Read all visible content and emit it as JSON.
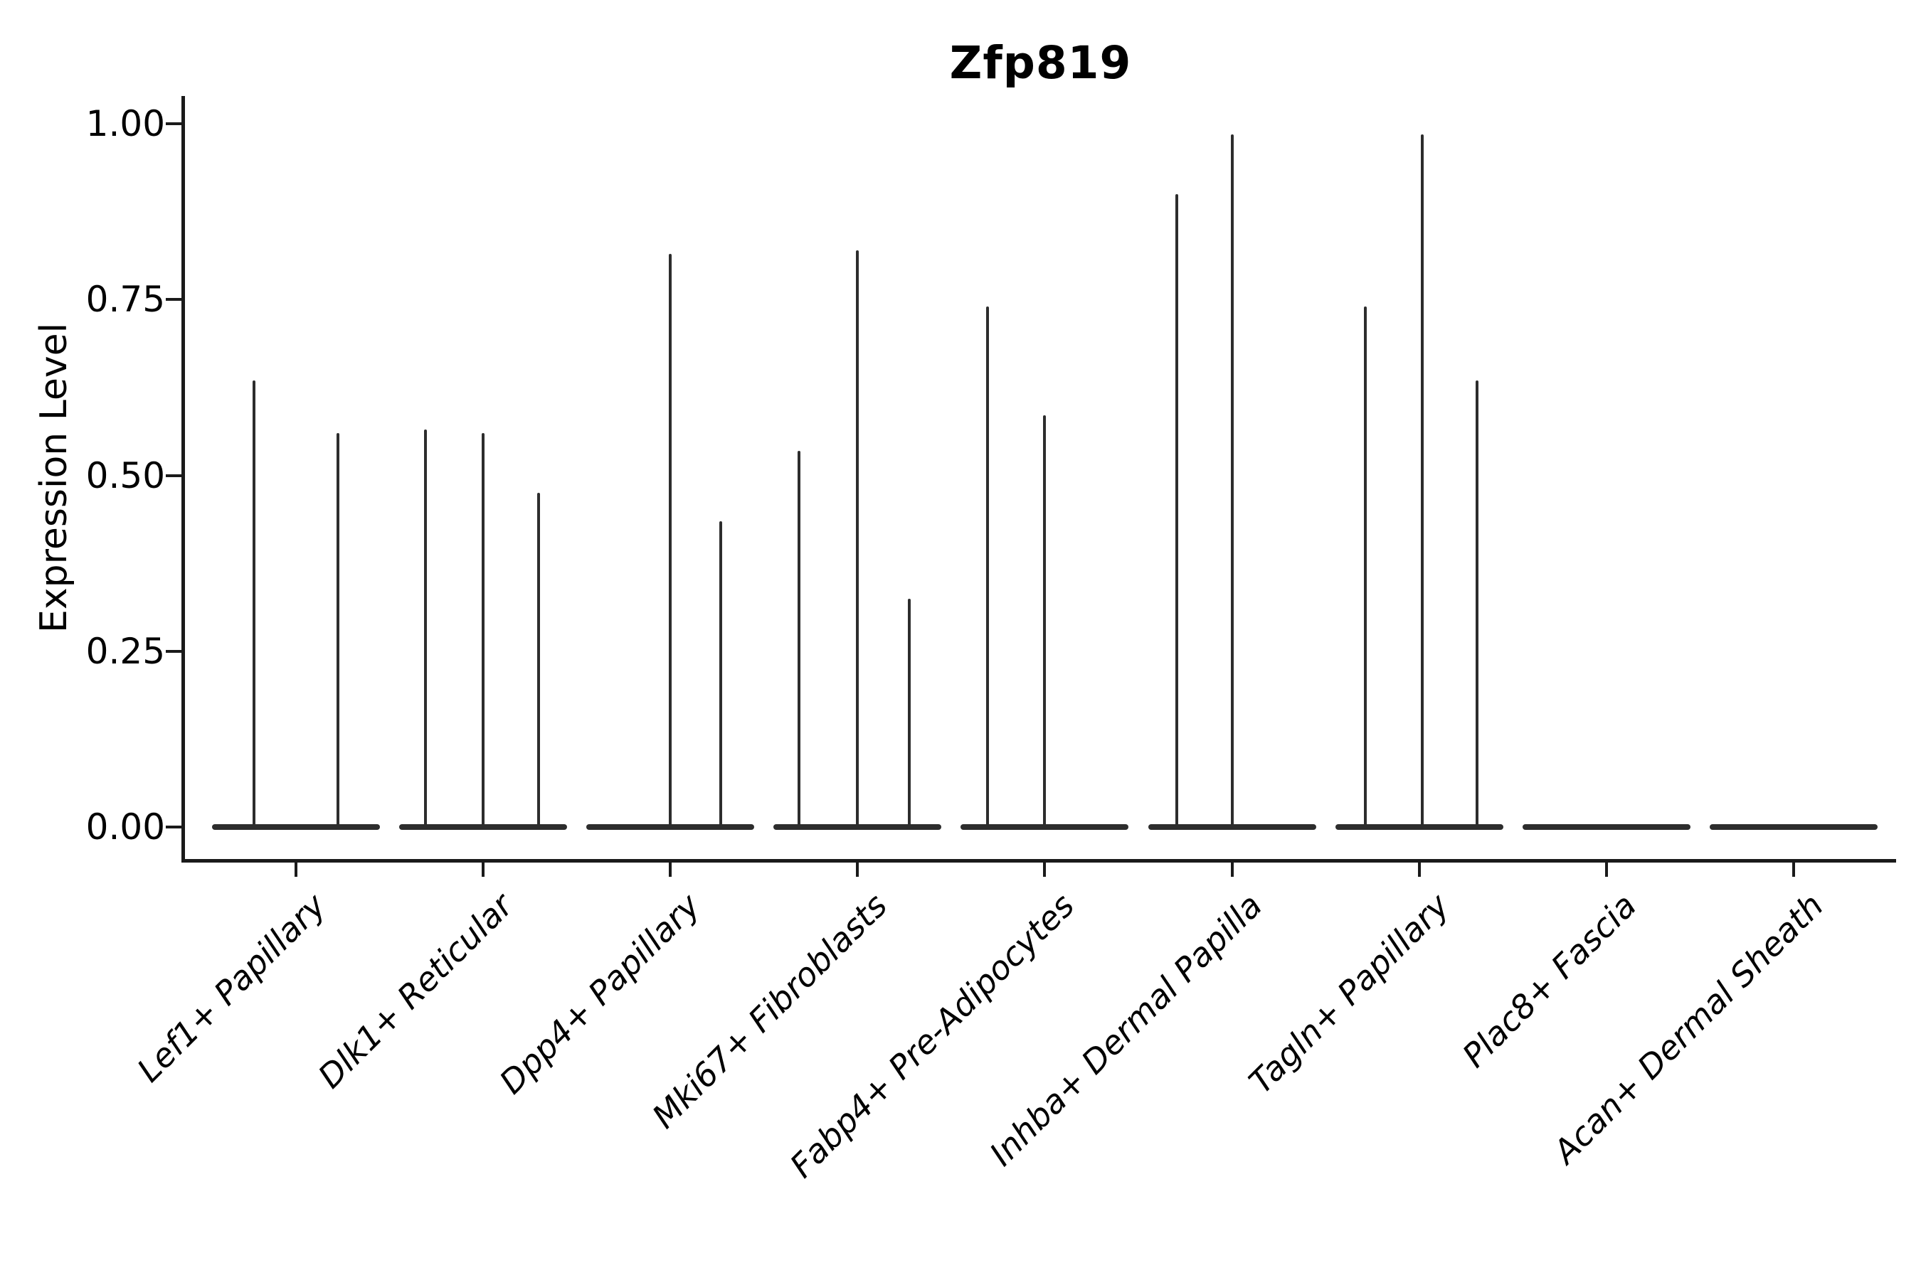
{
  "title": "Zfp819",
  "y_axis": {
    "label": "Expression Level"
  },
  "chart_data": {
    "type": "violin",
    "title": "Zfp819",
    "xlabel": "",
    "ylabel": "Expression Level",
    "ylim": [
      0,
      1.04
    ],
    "grid": false,
    "legend": "none",
    "line_color": "#2d2d2d",
    "axis_color": "#1a1a1a",
    "yticks": [
      1.0,
      0.75,
      0.5,
      0.25,
      0.0
    ],
    "ytick_labels": [
      "1.00",
      "0.75",
      "0.50",
      "0.25",
      "0.00"
    ],
    "categories": [
      "Lef1+ Papillary",
      "Dlk1+ Reticular",
      "Dpp4+ Papillary",
      "Mki67+ Fibroblasts",
      "Fabp4+ Pre-Adipocytes",
      "Inhba+ Dermal Papilla",
      "Tagln+ Papillary",
      "Plac8+ Fascia",
      "Acan+ Dermal Sheath"
    ],
    "violins": [
      {
        "category": "Lef1+ Papillary",
        "baseline_value": 0,
        "spikes": [
          {
            "dx": -59,
            "value": 0.635
          },
          {
            "dx": 59,
            "value": 0.56
          }
        ]
      },
      {
        "category": "Dlk1+ Reticular",
        "baseline_value": 0,
        "spikes": [
          {
            "dx": -81,
            "value": 0.565
          },
          {
            "dx": 0,
            "value": 0.56
          },
          {
            "dx": 78,
            "value": 0.475
          }
        ]
      },
      {
        "category": "Dpp4+ Papillary",
        "baseline_value": 0,
        "spikes": [
          {
            "dx": 0,
            "value": 0.815
          },
          {
            "dx": 71,
            "value": 0.435
          }
        ]
      },
      {
        "category": "Mki67+ Fibroblasts",
        "baseline_value": 0,
        "spikes": [
          {
            "dx": -82,
            "value": 0.535
          },
          {
            "dx": 0,
            "value": 0.82
          },
          {
            "dx": 73,
            "value": 0.325
          }
        ]
      },
      {
        "category": "Fabp4+ Pre-Adipocytes",
        "baseline_value": 0,
        "spikes": [
          {
            "dx": -80,
            "value": 0.74
          },
          {
            "dx": 0,
            "value": 0.585
          }
        ]
      },
      {
        "category": "Inhba+ Dermal Papilla",
        "baseline_value": 0,
        "spikes": [
          {
            "dx": -78,
            "value": 0.9
          },
          {
            "dx": 0,
            "value": 0.985
          }
        ]
      },
      {
        "category": "Tagln+ Papillary",
        "baseline_value": 0,
        "spikes": [
          {
            "dx": -76,
            "value": 0.74
          },
          {
            "dx": 4,
            "value": 0.985
          },
          {
            "dx": 81,
            "value": 0.635
          }
        ]
      },
      {
        "category": "Plac8+ Fascia",
        "baseline_value": 0,
        "spikes": []
      },
      {
        "category": "Acan+ Dermal Sheath",
        "baseline_value": 0,
        "spikes": []
      }
    ]
  }
}
